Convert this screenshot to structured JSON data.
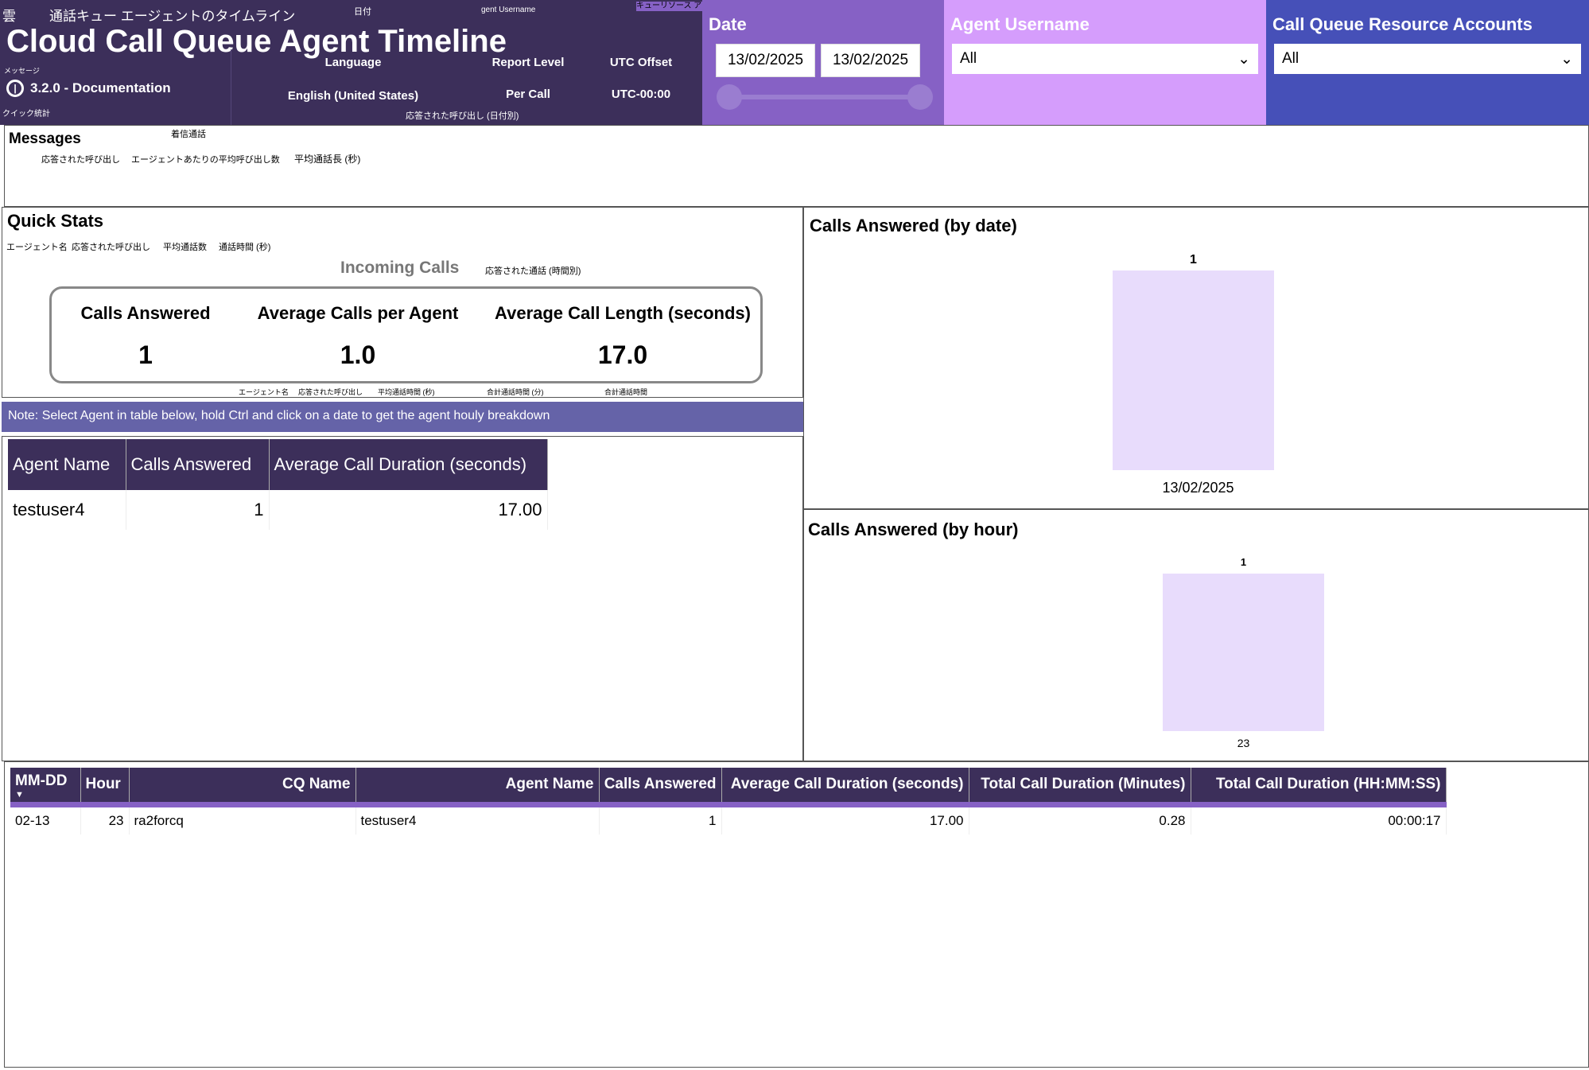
{
  "header": {
    "title": "Cloud Call Queue Agent Timeline",
    "version": "3.2.0 - Documentation",
    "params": [
      {
        "label": "Language",
        "value": "English (United States)"
      },
      {
        "label": "Report Level",
        "value": "Per Call"
      },
      {
        "label": "UTC Offset",
        "value": "UTC-00:00"
      }
    ]
  },
  "overlay_jp": {
    "a": "雲",
    "b": "通話キュー エージェントのタイムライン",
    "c": "日付",
    "d": "gent Username",
    "e": "キューリソース アカウントの呼び出し",
    "f": "メッセージ",
    "g": "クイック統計",
    "h": "応答された呼び出し (日付別)",
    "i": "着信通話",
    "j": "応答された呼び出し",
    "k": "エージェントあたりの平均呼び出し数",
    "l": "平均通話長 (秒)",
    "m": "エージェント名",
    "n": "応答された呼び出し",
    "o": "平均通話数",
    "p": "通話時間 (秒)",
    "q": "応答された通話 (時間別)",
    "r": "エージェント名",
    "s": "応答された呼び出し",
    "t": "平均通話時間 (秒)",
    "u": "合計通話時間 (分)",
    "v": "合計通話時間"
  },
  "filters": {
    "date": {
      "title": "Date",
      "from": "13/02/2025",
      "to": "13/02/2025"
    },
    "agent": {
      "title": "Agent Username",
      "value": "All"
    },
    "cq": {
      "title": "Call Queue Resource Accounts",
      "value": "All"
    }
  },
  "messages": {
    "title": "Messages"
  },
  "quick_stats": {
    "title": "Quick Stats",
    "subtitle": "Incoming Calls",
    "kpis": [
      {
        "label": "Calls Answered",
        "value": "1"
      },
      {
        "label": "Average Calls per Agent",
        "value": "1.0"
      },
      {
        "label": "Average Call Length (seconds)",
        "value": "17.0"
      }
    ]
  },
  "note": "Note: Select Agent in table below, hold Ctrl and click on a date to get the agent houly breakdown",
  "agent_table": {
    "columns": [
      "Agent Name",
      "Calls Answered",
      "Average Call Duration (seconds)"
    ],
    "rows": [
      [
        "testuser4",
        "1",
        "17.00"
      ]
    ]
  },
  "chart_data": [
    {
      "type": "bar",
      "title": "Calls Answered (by date)",
      "categories": [
        "13/02/2025"
      ],
      "values": [
        1
      ],
      "data_labels": [
        "1"
      ]
    },
    {
      "type": "bar",
      "title": "Calls Answered (by hour)",
      "categories": [
        "23"
      ],
      "values": [
        1
      ],
      "data_labels": [
        "1"
      ]
    }
  ],
  "detail_table": {
    "columns": [
      "MM-DD",
      "Hour",
      "CQ Name",
      "Agent Name",
      "Calls Answered",
      "Average Call Duration (seconds)",
      "Total Call Duration (Minutes)",
      "Total Call Duration (HH:MM:SS)"
    ],
    "rows": [
      [
        "02-13",
        "23",
        "ra2forcq",
        "testuser4",
        "1",
        "17.00",
        "0.28",
        "00:00:17"
      ]
    ]
  },
  "colors": {
    "header": "#3c2f5a",
    "date": "#8661c5",
    "agent": "#d59dfc",
    "cq": "#4650b8",
    "note": "#6563a8",
    "bar": "#e8dcfc"
  }
}
